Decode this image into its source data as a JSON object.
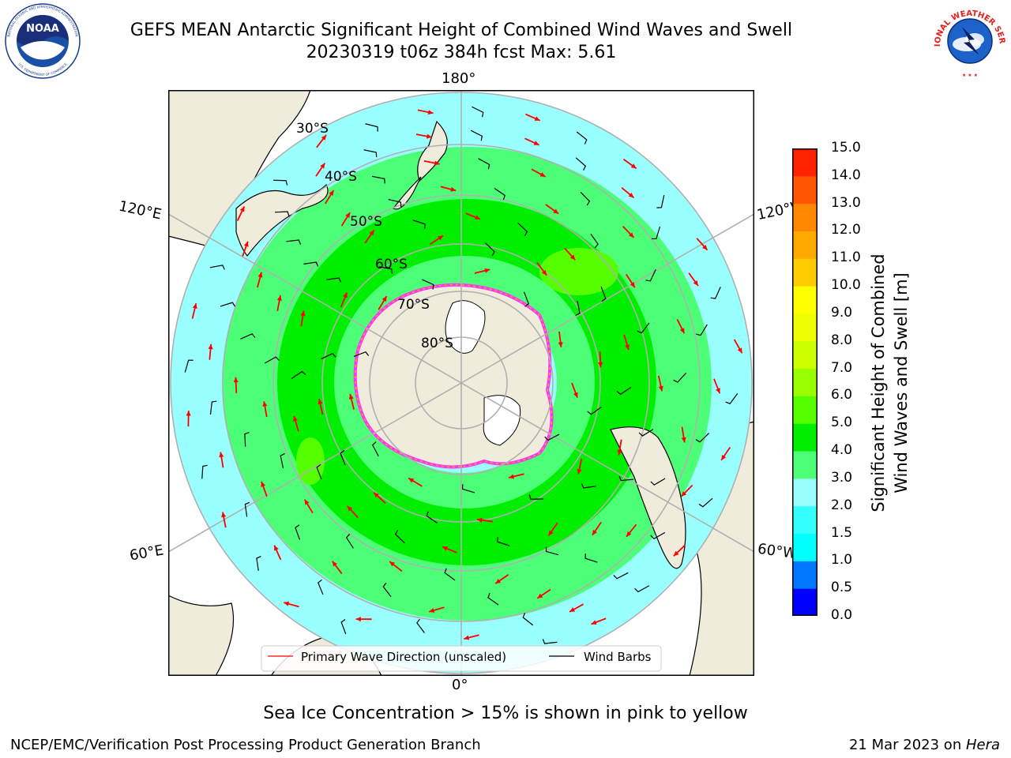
{
  "header": {
    "title_line1": "GEFS MEAN Antarctic Significant Height of Combined Wind Waves and Swell",
    "title_line2": "20230319 t06z 384h fcst   Max: 5.61"
  },
  "logos": {
    "left": {
      "name": "noaa-logo",
      "text": "NOAA",
      "ring_text": "NATIONAL OCEANIC AND ATMOSPHERIC ADMINISTRATION • U.S. DEPARTMENT OF COMMERCE"
    },
    "right": {
      "name": "nws-logo",
      "ring_text": "NATIONAL WEATHER SERVICE"
    }
  },
  "map": {
    "projection": "south polar stereographic",
    "longitude_labels": {
      "top": "180°",
      "bottom": "0°",
      "upper_left": "120°E",
      "lower_left": "60°E",
      "upper_right": "120°W",
      "lower_right": "60°W"
    },
    "latitude_labels": [
      "30°S",
      "40°S",
      "50°S",
      "60°S",
      "70°S",
      "80°S"
    ],
    "legend": {
      "wave_direction": "Primary Wave Direction (unscaled)",
      "wind_barbs": "Wind Barbs"
    },
    "colors": {
      "land": "#efecdc",
      "ice_sheet": "#ffffff",
      "grid": "#b0b0b0",
      "arrow": "#ff0000",
      "barb": "#000000",
      "ice_edge": "#ff33ff"
    }
  },
  "colorbar": {
    "label": "Significant Height of Combined Wind Waves and Swell [m]",
    "label_line1": "Significant Height of Combined",
    "label_line2": "Wind Waves and Swell [m]",
    "ticks": [
      "0.0",
      "0.5",
      "1.0",
      "1.5",
      "2.0",
      "3.0",
      "4.0",
      "5.0",
      "6.0",
      "7.0",
      "8.0",
      "9.0",
      "10.0",
      "11.0",
      "12.0",
      "13.0",
      "14.0",
      "15.0"
    ],
    "colors": [
      "#0000ff",
      "#0077ff",
      "#00ffff",
      "#33ffff",
      "#99ffff",
      "#4dff77",
      "#00ee00",
      "#55ff00",
      "#99ff00",
      "#ccff00",
      "#eeff00",
      "#ffff00",
      "#ffcc00",
      "#ffaa00",
      "#ff8800",
      "#ff5500",
      "#ff2200"
    ]
  },
  "ice_note": "Sea Ice Concentration > 15% is shown in pink to yellow",
  "footer": {
    "left": "NCEP/EMC/Verification Post Processing Product Generation Branch",
    "right_date": "21 Mar 2023 on ",
    "right_host": "Hera"
  }
}
